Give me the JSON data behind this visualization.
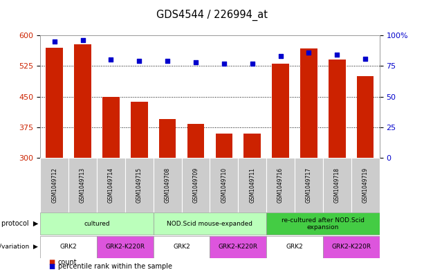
{
  "title": "GDS4544 / 226994_at",
  "samples": [
    "GSM1049712",
    "GSM1049713",
    "GSM1049714",
    "GSM1049715",
    "GSM1049708",
    "GSM1049709",
    "GSM1049710",
    "GSM1049711",
    "GSM1049716",
    "GSM1049717",
    "GSM1049718",
    "GSM1049719"
  ],
  "counts": [
    570,
    578,
    450,
    437,
    395,
    383,
    360,
    360,
    530,
    568,
    540,
    500
  ],
  "percentiles": [
    95,
    96,
    80,
    79,
    79,
    78,
    77,
    77,
    83,
    86,
    84,
    81
  ],
  "y_min": 300,
  "y_max": 600,
  "y_ticks_left": [
    300,
    375,
    450,
    525,
    600
  ],
  "y_ticks_right": [
    0,
    25,
    50,
    75,
    100
  ],
  "bar_color": "#cc2200",
  "dot_color": "#0000cc",
  "protocol_groups": [
    {
      "name": "cultured",
      "start": 0,
      "end": 3,
      "color": "#bbffbb"
    },
    {
      "name": "NOD.Scid mouse-expanded",
      "start": 4,
      "end": 7,
      "color": "#bbffbb"
    },
    {
      "name": "re-cultured after NOD.Scid\nexpansion",
      "start": 8,
      "end": 11,
      "color": "#44cc44"
    }
  ],
  "genotype_groups": [
    {
      "name": "GRK2",
      "start": 0,
      "end": 1,
      "color": "#ffffff"
    },
    {
      "name": "GRK2-K220R",
      "start": 2,
      "end": 3,
      "color": "#dd55dd"
    },
    {
      "name": "GRK2",
      "start": 4,
      "end": 5,
      "color": "#ffffff"
    },
    {
      "name": "GRK2-K220R",
      "start": 6,
      "end": 7,
      "color": "#dd55dd"
    },
    {
      "name": "GRK2",
      "start": 8,
      "end": 9,
      "color": "#ffffff"
    },
    {
      "name": "GRK2-K220R",
      "start": 10,
      "end": 11,
      "color": "#dd55dd"
    }
  ],
  "tick_bg": "#cccccc",
  "bg_color": "#ffffff",
  "legend_count_label": "count",
  "legend_perc_label": "percentile rank within the sample"
}
